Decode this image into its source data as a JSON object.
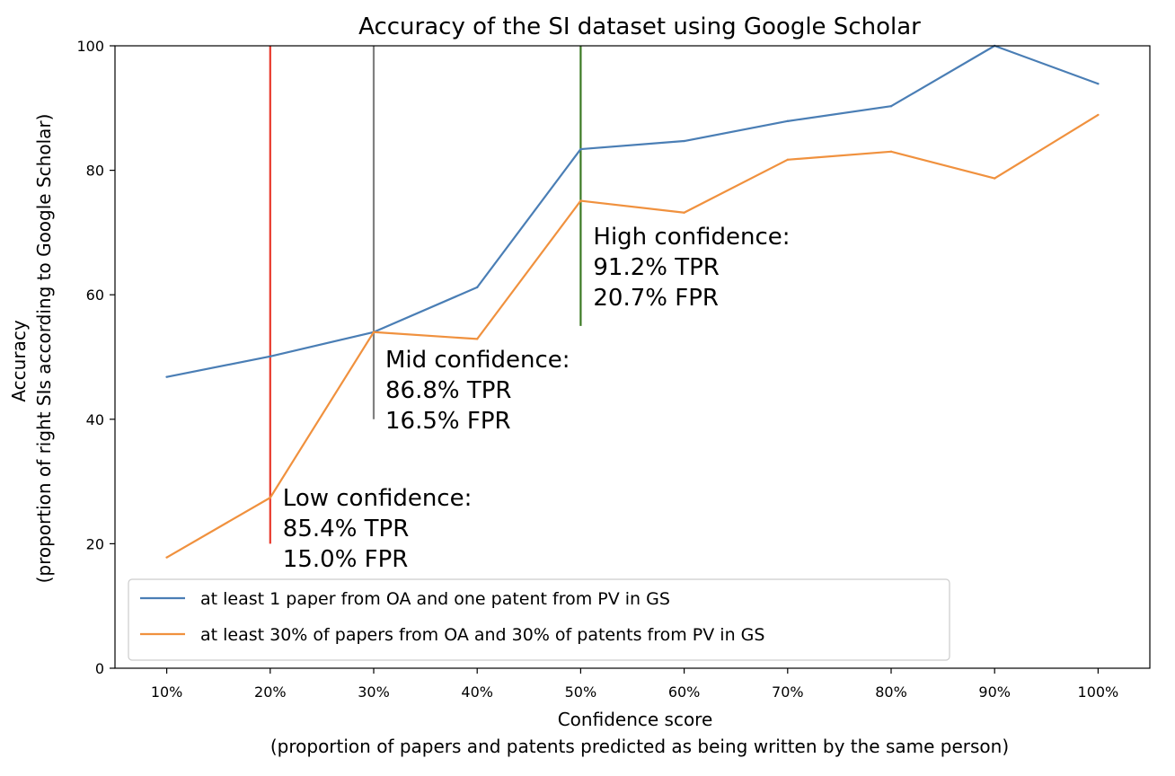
{
  "chart_data": {
    "type": "line",
    "title": "Accuracy of the SI dataset using Google Scholar",
    "xlabel": [
      "Confidence score",
      "(proportion of papers and patents predicted as being written by the same person)"
    ],
    "ylabel": [
      "Accuracy",
      "(proportion of right SIs according to Google Scholar)"
    ],
    "x": [
      10,
      20,
      30,
      40,
      50,
      60,
      70,
      80,
      90,
      100
    ],
    "x_tick_labels": [
      "10%",
      "20%",
      "30%",
      "40%",
      "50%",
      "60%",
      "70%",
      "80%",
      "90%",
      "100%"
    ],
    "xlim": [
      5,
      105
    ],
    "ylim": [
      0,
      100
    ],
    "y_ticks": [
      0,
      20,
      40,
      60,
      80,
      100
    ],
    "grid": false,
    "legend_position": "lower-left",
    "series": [
      {
        "name": "at least 1 paper from OA and one patent from PV in GS",
        "color": "#4a7eb5",
        "values": [
          46.8,
          50.1,
          54.0,
          61.2,
          83.4,
          84.7,
          87.9,
          90.3,
          100.0,
          93.9
        ]
      },
      {
        "name": "at least 30% of papers from OA and 30% of patents from PV in GS",
        "color": "#f0913e",
        "values": [
          17.8,
          27.4,
          54.0,
          52.9,
          75.1,
          73.2,
          81.7,
          83.0,
          78.7,
          88.9
        ]
      }
    ],
    "vlines": [
      {
        "x": 20,
        "ymin": 20,
        "ymax": 100,
        "color": "#e8382a",
        "label": [
          "Low confidence:",
          "85.4% TPR",
          "15.0% FPR"
        ]
      },
      {
        "x": 30,
        "ymin": 40,
        "ymax": 100,
        "color": "#808080",
        "label": [
          "Mid confidence:",
          "86.8% TPR",
          "16.5% FPR"
        ]
      },
      {
        "x": 50,
        "ymin": 55,
        "ymax": 100,
        "color": "#3c7a24",
        "label": [
          "High confidence:",
          "91.2% TPR",
          "20.7% FPR"
        ]
      }
    ]
  }
}
